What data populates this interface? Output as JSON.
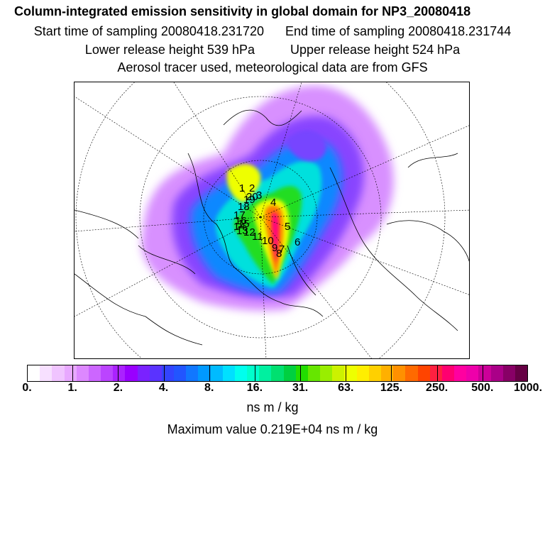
{
  "header": {
    "title": "Column-integrated emission sensitivity in global domain for NP3_20080418",
    "start_label": "Start time of sampling 20080418.231720",
    "end_label": "End time of sampling 20080418.231744",
    "lower_label": "Lower release height  539 hPa",
    "upper_label": "Upper release height  524 hPa",
    "tracer_line": "Aerosol tracer used, meteorological data are from GFS"
  },
  "markers": [
    "1",
    "2",
    "3",
    "4",
    "5",
    "6",
    "7",
    "8",
    "9",
    "10",
    "11",
    "12",
    "13",
    "14",
    "15",
    "16",
    "17",
    "18",
    "19",
    "20"
  ],
  "colorbar": {
    "labels": [
      "0.",
      "1.",
      "2.",
      "4.",
      "8.",
      "16.",
      "31.",
      "63.",
      "125.",
      "250.",
      "500.",
      "1000."
    ],
    "colors": [
      "#ffffff",
      "#f7e0ff",
      "#f0c4ff",
      "#e8a8ff",
      "#dd88ff",
      "#cc66ff",
      "#bb44ff",
      "#aa22ff",
      "#9900ff",
      "#7a22ff",
      "#5a33ff",
      "#3344ff",
      "#2255ff",
      "#1177ff",
      "#0099ff",
      "#00bbff",
      "#00e0ff",
      "#00ffee",
      "#00ffcc",
      "#00f0a0",
      "#00e070",
      "#00d040",
      "#22dd00",
      "#66e600",
      "#99ee00",
      "#ccf200",
      "#eeff00",
      "#ffee00",
      "#ffd000",
      "#ffb000",
      "#ff9000",
      "#ff6a00",
      "#ff4400",
      "#ff2040",
      "#ff0070",
      "#ff00a0",
      "#ee00aa",
      "#cc0099",
      "#aa0088",
      "#880066",
      "#660044"
    ]
  },
  "units_label": "ns m / kg",
  "max_label": "Maximum value  0.219E+04 ns m / kg"
}
